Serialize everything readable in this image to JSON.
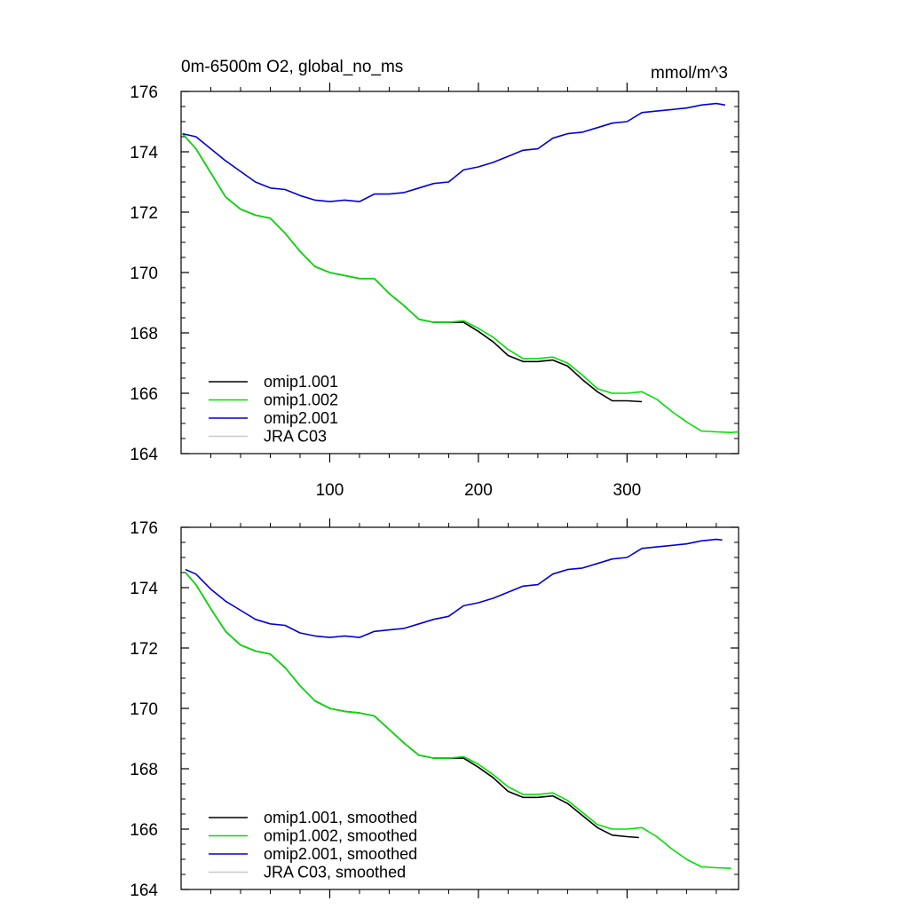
{
  "chart_data": [
    {
      "type": "line",
      "title_left": "0m-6500m O2, global_no_ms",
      "title_right": "mmol/m^3",
      "xlim": [
        0,
        375
      ],
      "ylim": [
        164,
        176
      ],
      "x_ticks": [
        100,
        200,
        300
      ],
      "y_ticks": [
        164,
        166,
        168,
        170,
        172,
        174,
        176
      ],
      "x_tick_labels": [
        "100",
        "200",
        "300"
      ],
      "y_tick_labels": [
        "164",
        "166",
        "168",
        "170",
        "172",
        "174",
        "176"
      ],
      "legend_position": "bottom-left",
      "series": [
        {
          "name": "omip1.001",
          "color": "#000000",
          "points": [
            [
              1,
              174.6
            ],
            [
              10,
              174.1
            ],
            [
              20,
              173.3
            ],
            [
              30,
              172.5
            ],
            [
              40,
              172.1
            ],
            [
              50,
              171.9
            ],
            [
              60,
              171.8
            ],
            [
              70,
              171.3
            ],
            [
              80,
              170.7
            ],
            [
              90,
              170.2
            ],
            [
              100,
              170.0
            ],
            [
              110,
              169.9
            ],
            [
              120,
              169.8
            ],
            [
              130,
              169.8
            ],
            [
              140,
              169.3
            ],
            [
              150,
              168.9
            ],
            [
              160,
              168.45
            ],
            [
              170,
              168.35
            ],
            [
              180,
              168.35
            ],
            [
              190,
              168.35
            ],
            [
              200,
              168.05
            ],
            [
              210,
              167.7
            ],
            [
              220,
              167.25
            ],
            [
              230,
              167.05
            ],
            [
              240,
              167.05
            ],
            [
              250,
              167.1
            ],
            [
              260,
              166.9
            ],
            [
              270,
              166.45
            ],
            [
              280,
              166.05
            ],
            [
              290,
              165.75
            ],
            [
              300,
              165.75
            ],
            [
              310,
              165.72
            ]
          ]
        },
        {
          "name": "omip1.002",
          "color": "#00e000",
          "points": [
            [
              1,
              174.6
            ],
            [
              10,
              174.1
            ],
            [
              20,
              173.3
            ],
            [
              30,
              172.5
            ],
            [
              40,
              172.1
            ],
            [
              50,
              171.9
            ],
            [
              60,
              171.8
            ],
            [
              70,
              171.3
            ],
            [
              80,
              170.7
            ],
            [
              90,
              170.2
            ],
            [
              100,
              170.0
            ],
            [
              110,
              169.9
            ],
            [
              120,
              169.8
            ],
            [
              130,
              169.8
            ],
            [
              140,
              169.3
            ],
            [
              150,
              168.9
            ],
            [
              160,
              168.45
            ],
            [
              170,
              168.35
            ],
            [
              180,
              168.35
            ],
            [
              190,
              168.4
            ],
            [
              200,
              168.15
            ],
            [
              210,
              167.85
            ],
            [
              220,
              167.45
            ],
            [
              230,
              167.15
            ],
            [
              240,
              167.15
            ],
            [
              250,
              167.2
            ],
            [
              260,
              167.0
            ],
            [
              270,
              166.6
            ],
            [
              280,
              166.15
            ],
            [
              290,
              166.0
            ],
            [
              300,
              166.0
            ],
            [
              310,
              166.05
            ],
            [
              320,
              165.8
            ],
            [
              330,
              165.4
            ],
            [
              340,
              165.05
            ],
            [
              350,
              164.75
            ],
            [
              360,
              164.72
            ],
            [
              370,
              164.7
            ],
            [
              375,
              164.72
            ]
          ]
        },
        {
          "name": "omip2.001",
          "color": "#0000d8",
          "points": [
            [
              1,
              174.6
            ],
            [
              10,
              174.5
            ],
            [
              20,
              174.1
            ],
            [
              30,
              173.7
            ],
            [
              40,
              173.35
            ],
            [
              50,
              173.0
            ],
            [
              60,
              172.8
            ],
            [
              70,
              172.75
            ],
            [
              80,
              172.55
            ],
            [
              90,
              172.4
            ],
            [
              100,
              172.35
            ],
            [
              110,
              172.4
            ],
            [
              120,
              172.35
            ],
            [
              130,
              172.6
            ],
            [
              140,
              172.6
            ],
            [
              150,
              172.65
            ],
            [
              160,
              172.8
            ],
            [
              170,
              172.95
            ],
            [
              180,
              173.0
            ],
            [
              190,
              173.4
            ],
            [
              200,
              173.5
            ],
            [
              210,
              173.65
            ],
            [
              220,
              173.85
            ],
            [
              230,
              174.05
            ],
            [
              240,
              174.1
            ],
            [
              250,
              174.45
            ],
            [
              260,
              174.6
            ],
            [
              270,
              174.65
            ],
            [
              280,
              174.8
            ],
            [
              290,
              174.95
            ],
            [
              300,
              175.0
            ],
            [
              310,
              175.3
            ],
            [
              320,
              175.35
            ],
            [
              330,
              175.4
            ],
            [
              340,
              175.45
            ],
            [
              350,
              175.55
            ],
            [
              360,
              175.6
            ],
            [
              366,
              175.55
            ]
          ]
        },
        {
          "name": "JRA C03",
          "color": "#c8c8c8",
          "points": []
        }
      ]
    },
    {
      "type": "line",
      "xlim": [
        0,
        375
      ],
      "ylim": [
        164,
        176
      ],
      "x_ticks": [
        100,
        200,
        300
      ],
      "y_ticks": [
        164,
        166,
        168,
        170,
        172,
        174,
        176
      ],
      "y_tick_labels": [
        "164",
        "166",
        "168",
        "170",
        "172",
        "174",
        "176"
      ],
      "legend_position": "bottom-left",
      "series": [
        {
          "name": "omip1.001, smoothed",
          "color": "#000000",
          "points": [
            [
              3,
              174.5
            ],
            [
              10,
              174.1
            ],
            [
              20,
              173.3
            ],
            [
              30,
              172.55
            ],
            [
              40,
              172.1
            ],
            [
              50,
              171.9
            ],
            [
              60,
              171.8
            ],
            [
              70,
              171.35
            ],
            [
              80,
              170.75
            ],
            [
              90,
              170.25
            ],
            [
              100,
              170.0
            ],
            [
              110,
              169.9
            ],
            [
              120,
              169.85
            ],
            [
              130,
              169.75
            ],
            [
              140,
              169.3
            ],
            [
              150,
              168.85
            ],
            [
              160,
              168.45
            ],
            [
              170,
              168.35
            ],
            [
              180,
              168.35
            ],
            [
              190,
              168.35
            ],
            [
              200,
              168.05
            ],
            [
              210,
              167.7
            ],
            [
              220,
              167.25
            ],
            [
              230,
              167.05
            ],
            [
              240,
              167.05
            ],
            [
              250,
              167.1
            ],
            [
              260,
              166.85
            ],
            [
              270,
              166.45
            ],
            [
              280,
              166.05
            ],
            [
              290,
              165.8
            ],
            [
              300,
              165.75
            ],
            [
              308,
              165.72
            ]
          ]
        },
        {
          "name": "omip1.002, smoothed",
          "color": "#00e000",
          "points": [
            [
              3,
              174.5
            ],
            [
              10,
              174.1
            ],
            [
              20,
              173.3
            ],
            [
              30,
              172.55
            ],
            [
              40,
              172.1
            ],
            [
              50,
              171.9
            ],
            [
              60,
              171.8
            ],
            [
              70,
              171.35
            ],
            [
              80,
              170.75
            ],
            [
              90,
              170.25
            ],
            [
              100,
              170.0
            ],
            [
              110,
              169.9
            ],
            [
              120,
              169.85
            ],
            [
              130,
              169.75
            ],
            [
              140,
              169.3
            ],
            [
              150,
              168.85
            ],
            [
              160,
              168.45
            ],
            [
              170,
              168.35
            ],
            [
              180,
              168.35
            ],
            [
              190,
              168.4
            ],
            [
              200,
              168.15
            ],
            [
              210,
              167.8
            ],
            [
              220,
              167.4
            ],
            [
              230,
              167.15
            ],
            [
              240,
              167.15
            ],
            [
              250,
              167.2
            ],
            [
              260,
              166.95
            ],
            [
              270,
              166.55
            ],
            [
              280,
              166.15
            ],
            [
              290,
              166.0
            ],
            [
              300,
              166.0
            ],
            [
              310,
              166.05
            ],
            [
              320,
              165.75
            ],
            [
              330,
              165.35
            ],
            [
              340,
              165.0
            ],
            [
              350,
              164.75
            ],
            [
              360,
              164.72
            ],
            [
              370,
              164.7
            ]
          ]
        },
        {
          "name": "omip2.001, smoothed",
          "color": "#0000d8",
          "points": [
            [
              3,
              174.6
            ],
            [
              10,
              174.45
            ],
            [
              20,
              173.95
            ],
            [
              30,
              173.55
            ],
            [
              40,
              173.25
            ],
            [
              50,
              172.95
            ],
            [
              60,
              172.8
            ],
            [
              70,
              172.75
            ],
            [
              80,
              172.5
            ],
            [
              90,
              172.4
            ],
            [
              100,
              172.35
            ],
            [
              110,
              172.4
            ],
            [
              120,
              172.35
            ],
            [
              130,
              172.55
            ],
            [
              140,
              172.6
            ],
            [
              150,
              172.65
            ],
            [
              160,
              172.8
            ],
            [
              170,
              172.95
            ],
            [
              180,
              173.05
            ],
            [
              190,
              173.4
            ],
            [
              200,
              173.5
            ],
            [
              210,
              173.65
            ],
            [
              220,
              173.85
            ],
            [
              230,
              174.05
            ],
            [
              240,
              174.1
            ],
            [
              250,
              174.45
            ],
            [
              260,
              174.6
            ],
            [
              270,
              174.65
            ],
            [
              280,
              174.8
            ],
            [
              290,
              174.95
            ],
            [
              300,
              175.0
            ],
            [
              310,
              175.3
            ],
            [
              320,
              175.35
            ],
            [
              330,
              175.4
            ],
            [
              340,
              175.45
            ],
            [
              350,
              175.55
            ],
            [
              360,
              175.6
            ],
            [
              364,
              175.58
            ]
          ]
        },
        {
          "name": "JRA C03, smoothed",
          "color": "#c8c8c8",
          "points": []
        }
      ]
    }
  ]
}
